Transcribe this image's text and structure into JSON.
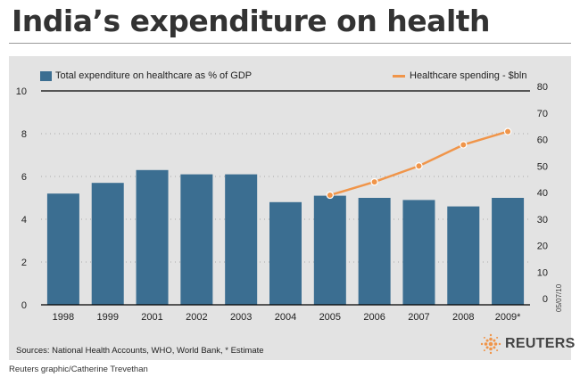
{
  "header": {
    "title": "India’s expenditure on health"
  },
  "legend": {
    "left_label": "Total expenditure on healthcare as % of GDP",
    "right_label": "Healthcare spending - $bln"
  },
  "footer": {
    "sources": "Sources: National Health Accounts, WHO, World Bank, * Estimate",
    "credit": "Reuters graphic/Catherine Trevethan",
    "brand": "REUTERS",
    "date_stamp": "05/07/10"
  },
  "colors": {
    "bar": "#3b6e91",
    "line": "#f0954a",
    "panel": "#e3e3e3"
  },
  "chart_data": {
    "type": "bar",
    "title": "India’s expenditure on health",
    "categories": [
      "1998",
      "1999",
      "2001",
      "2002",
      "2003",
      "2004",
      "2005",
      "2006",
      "2007",
      "2008",
      "2009*"
    ],
    "series": [
      {
        "name": "Total expenditure on healthcare as % of GDP",
        "type": "bar",
        "axis": "left",
        "values": [
          5.2,
          5.7,
          6.3,
          6.1,
          6.1,
          4.8,
          5.1,
          5.0,
          4.9,
          4.6,
          5.0
        ]
      },
      {
        "name": "Healthcare spending - $bln",
        "type": "line",
        "axis": "right",
        "values": [
          null,
          null,
          null,
          null,
          null,
          null,
          39,
          44,
          50,
          58,
          63
        ]
      }
    ],
    "left_axis": {
      "ylim": [
        0,
        10
      ],
      "ticks": [
        0,
        2,
        4,
        6,
        8,
        10
      ]
    },
    "right_axis": {
      "ylim": [
        0,
        80
      ],
      "ticks": [
        0,
        10,
        20,
        30,
        40,
        50,
        60,
        70,
        80
      ]
    },
    "grid": "dotted"
  }
}
